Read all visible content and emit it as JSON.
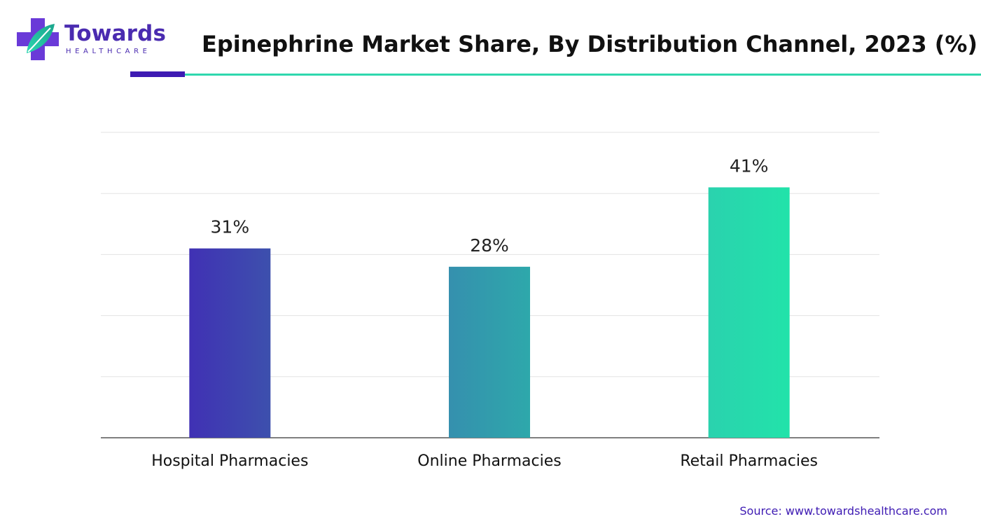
{
  "header": {
    "logo_word": "Towards",
    "logo_sub": "HEALTHCARE",
    "title": "Epinephrine Market Share, By Distribution Channel, 2023 (%)"
  },
  "footer": {
    "source": "Source: www.towardshealthcare.com"
  },
  "colors": {
    "brand_purple": "#3e1bb3",
    "brand_teal": "#2fd8ae"
  },
  "chart_data": {
    "type": "bar",
    "categories": [
      "Hospital Pharmacies",
      "Online Pharmacies",
      "Retail Pharmacies"
    ],
    "values": [
      31,
      28,
      41
    ],
    "value_labels": [
      "31%",
      "28%",
      "41%"
    ],
    "ylim": [
      0,
      50
    ],
    "grid": true,
    "bar_colors": [
      [
        "#4031b4",
        "#3d50ad"
      ],
      [
        "#3590ae",
        "#2ea8ab"
      ],
      [
        "#2ad2ae",
        "#22e3aa"
      ]
    ]
  }
}
